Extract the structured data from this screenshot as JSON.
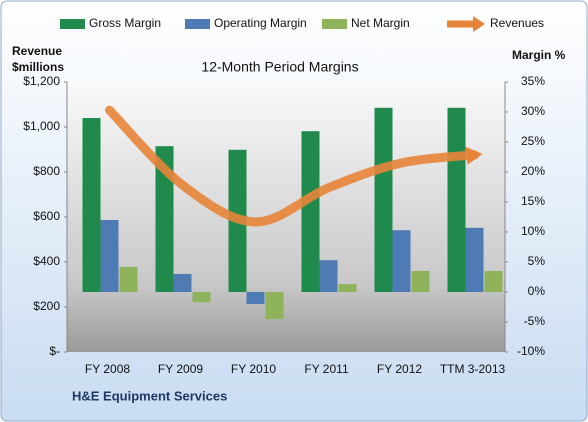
{
  "chart_data": {
    "type": "bar-line",
    "title": "12-Month Period Margins",
    "y_label": "Revenue $millions",
    "y2_label": "Margin %",
    "source": "H&E Equipment Services",
    "categories": [
      "FY 2008",
      "FY 2009",
      "FY 2010",
      "FY 2011",
      "FY 2012",
      "TTM 3-2013"
    ],
    "series": [
      {
        "name": "Gross Margin",
        "color": "#1f8a4c",
        "axis": "y2",
        "type": "bar",
        "values": [
          29,
          24.3,
          23.7,
          26.8,
          30.7,
          30.7
        ]
      },
      {
        "name": "Operating Margin",
        "color": "#4f7bb5",
        "axis": "y2",
        "type": "bar",
        "values": [
          12,
          3,
          -2,
          5.3,
          10.3,
          10.7
        ]
      },
      {
        "name": "Net Margin",
        "color": "#8fb35a",
        "axis": "y2",
        "type": "bar",
        "values": [
          4.2,
          -1.7,
          -4.5,
          1.3,
          3.5,
          3.5
        ]
      },
      {
        "name": "Revenues",
        "color": "#e8843a",
        "type": "line",
        "values": [
          1075,
          742,
          578,
          730,
          840,
          876
        ]
      }
    ],
    "ylim": [
      0,
      1200
    ],
    "yticks": [
      {
        "value": 0,
        "label": "$-"
      },
      {
        "value": 200,
        "label": "$200"
      },
      {
        "value": 400,
        "label": "$400"
      },
      {
        "value": 600,
        "label": "$600"
      },
      {
        "value": 800,
        "label": "$800"
      },
      {
        "value": 1000,
        "label": "$1,000"
      },
      {
        "value": 1200,
        "label": "$1,200"
      }
    ],
    "y2lim": [
      -10,
      35
    ],
    "y2ticks": [
      {
        "value": -10,
        "label": "-10%"
      },
      {
        "value": -5,
        "label": "-5%"
      },
      {
        "value": 0,
        "label": "0%"
      },
      {
        "value": 5,
        "label": "5%"
      },
      {
        "value": 10,
        "label": "10%"
      },
      {
        "value": 15,
        "label": "15%"
      },
      {
        "value": 20,
        "label": "20%"
      },
      {
        "value": 25,
        "label": "25%"
      },
      {
        "value": 30,
        "label": "30%"
      },
      {
        "value": 35,
        "label": "35%"
      }
    ]
  }
}
